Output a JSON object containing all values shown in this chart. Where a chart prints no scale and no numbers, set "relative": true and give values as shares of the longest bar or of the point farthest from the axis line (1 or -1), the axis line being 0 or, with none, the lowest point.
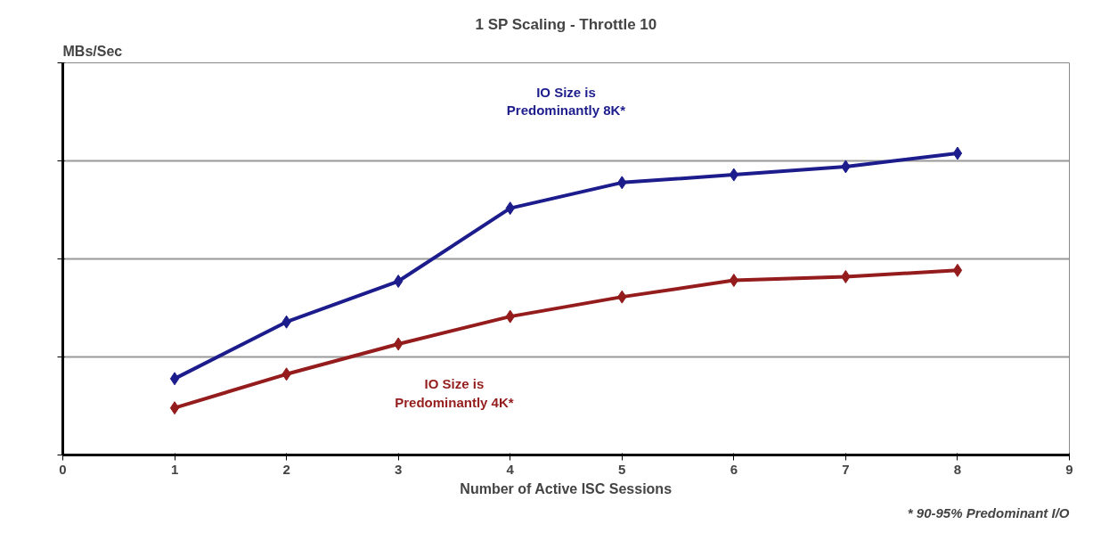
{
  "chart_data": {
    "type": "line",
    "title": "1 SP Scaling - Throttle 10",
    "xlabel": "Number of Active ISC Sessions",
    "annotations": [
      "MBs/Sec",
      "* 90-95% Predominant I/O"
    ],
    "relative": true,
    "x": [
      1,
      2,
      3,
      4,
      5,
      6,
      7,
      8
    ],
    "xlim": [
      0,
      9
    ],
    "xticks": [
      0,
      1,
      2,
      3,
      4,
      5,
      6,
      7,
      8,
      9
    ],
    "grid": "y",
    "marker": "diamond",
    "line_style": "solid",
    "series": [
      {
        "name": "IO Size is Predominantly 8K*",
        "color": "#1c1c8c",
        "values": [
          0.253,
          0.441,
          0.576,
          0.818,
          0.903,
          0.929,
          0.956,
          1
        ]
      },
      {
        "name": "IO Size is Predominantly 4K*",
        "color": "#941c1c",
        "values": [
          0.156,
          0.268,
          0.368,
          0.459,
          0.524,
          0.579,
          0.591,
          0.612
        ]
      }
    ]
  }
}
